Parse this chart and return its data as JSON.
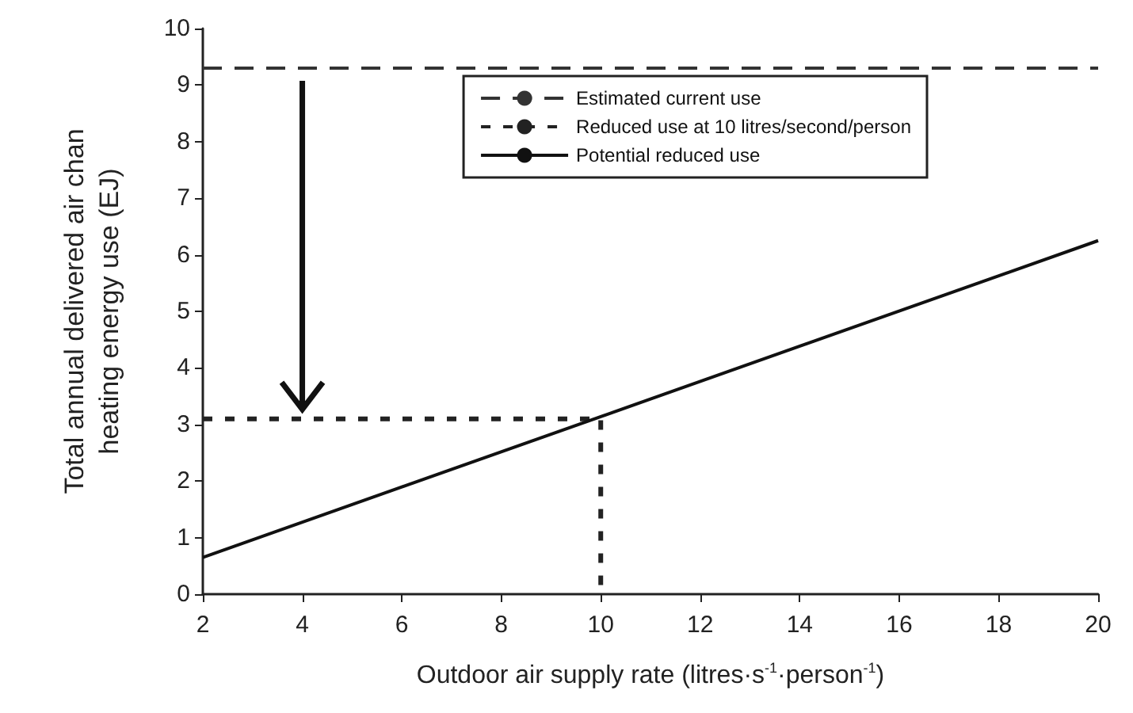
{
  "chart_data": {
    "type": "line",
    "xlabel": "Outdoor air supply rate (litres·s$^{-1}$·person$^{-1}$)",
    "ylabel": "Total annual delivered air chan\nheating energy use (EJ)",
    "xlim": [
      2,
      20
    ],
    "xticks": [
      2,
      4,
      6,
      8,
      10,
      12,
      14,
      16,
      18,
      20
    ],
    "ylim": [
      0,
      10
    ],
    "yticks": [
      0,
      1,
      2,
      3,
      4,
      5,
      6,
      7,
      8,
      9,
      10
    ],
    "series": [
      {
        "name": "Estimated current use",
        "color": "#333333",
        "line_style": "dashed",
        "x": [
          2,
          20
        ],
        "values": [
          9.3,
          9.3
        ]
      },
      {
        "name": "Reduced use at 10 litres/second/person",
        "color": "#222222",
        "line_style": "dotted",
        "x": [
          2,
          10,
          10
        ],
        "values": [
          3.1,
          3.1,
          0
        ]
      },
      {
        "name": "Potential reduced use",
        "color": "#111111",
        "line_style": "solid",
        "x": [
          2,
          20
        ],
        "values": [
          0.65,
          6.25
        ]
      }
    ],
    "legend": "top right",
    "grid": false,
    "marker": "none"
  }
}
